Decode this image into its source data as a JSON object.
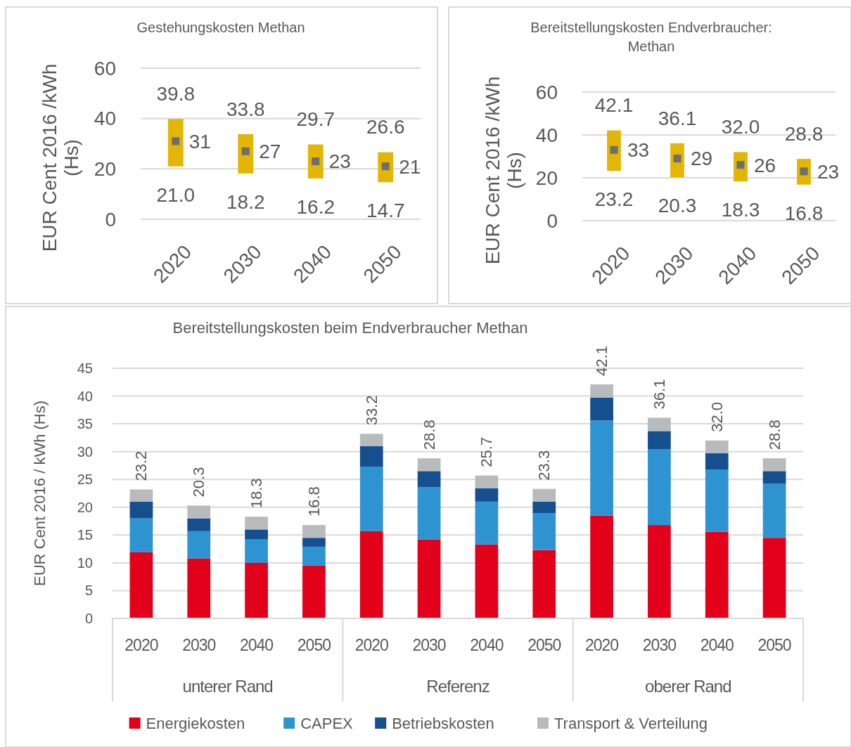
{
  "chart_data": [
    {
      "type": "bar",
      "title": "Gestehungskosten Methan",
      "ylabel": "EUR Cent 2016 /kWh (Hs)",
      "categories": [
        "2020",
        "2030",
        "2040",
        "2050"
      ],
      "series": [
        {
          "color": "#e3b505",
          "base": [
            21.0,
            18.2,
            16.2,
            14.7
          ],
          "values": [
            18.8,
            15.6,
            13.5,
            11.9
          ]
        },
        {
          "type": "scatter",
          "color": "#6d6e71",
          "values": [
            31,
            27,
            23,
            21
          ],
          "value_labels": [
            "31",
            "27",
            "23",
            "21"
          ]
        }
      ],
      "annotations": [
        "39.8",
        "21.0",
        "33.8",
        "18.2",
        "29.7",
        "16.2",
        "26.6",
        "14.7"
      ],
      "ylim": [
        0,
        60
      ],
      "yticks": [
        0,
        20,
        40,
        60
      ],
      "grid": "y",
      "marker": "square"
    },
    {
      "type": "bar",
      "title": "Bereitstellungskosten Endverbraucher: Methan",
      "ylabel": "EUR Cent 2016 /kWh (Hs)",
      "categories": [
        "2020",
        "2030",
        "2040",
        "2050"
      ],
      "series": [
        {
          "color": "#e3b505",
          "base": [
            23.2,
            20.3,
            18.3,
            16.8
          ],
          "values": [
            18.9,
            15.8,
            13.7,
            12.0
          ]
        },
        {
          "type": "scatter",
          "color": "#6d6e71",
          "values": [
            33,
            29,
            26,
            23
          ],
          "value_labels": [
            "33",
            "29",
            "26",
            "23"
          ]
        }
      ],
      "annotations": [
        "42.1",
        "23.2",
        "36.1",
        "20.3",
        "32.0",
        "18.3",
        "28.8",
        "16.8"
      ],
      "ylim": [
        0,
        60
      ],
      "yticks": [
        0,
        20,
        40,
        60
      ],
      "grid": "y",
      "marker": "square"
    },
    {
      "type": "bar",
      "title": "Bereitstellungskosten beim Endverbraucher Methan",
      "ylabel": "EUR Cent 2016 / kWh (Hs)",
      "stacked": true,
      "categories": [
        "2020",
        "2030",
        "2040",
        "2050",
        "2020",
        "2030",
        "2040",
        "2050",
        "2020",
        "2030",
        "2040",
        "2050"
      ],
      "series": [
        {
          "name": "Energiekosten",
          "color": "#e2001a",
          "values": [
            11.9,
            10.8,
            10.0,
            9.5,
            15.7,
            14.2,
            13.3,
            12.3,
            18.5,
            16.8,
            15.6,
            14.5
          ]
        },
        {
          "name": "CAPEX",
          "color": "#2e93d1",
          "values": [
            6.1,
            4.9,
            4.2,
            3.4,
            11.6,
            9.4,
            7.7,
            6.6,
            17.1,
            13.6,
            11.2,
            9.7
          ]
        },
        {
          "name": "Betriebskosten",
          "color": "#154f8e",
          "values": [
            3.0,
            2.3,
            1.8,
            1.6,
            3.7,
            2.9,
            2.4,
            2.1,
            4.1,
            3.3,
            2.9,
            2.3
          ]
        },
        {
          "name": "Transport & Verteilung",
          "color": "#b8bbbe",
          "values": [
            2.2,
            2.3,
            2.3,
            2.3,
            2.2,
            2.3,
            2.3,
            2.3,
            2.4,
            2.4,
            2.3,
            2.3
          ]
        }
      ],
      "totals": [
        "23.2",
        "20.3",
        "18.3",
        "16.8",
        "33.2",
        "28.8",
        "25.7",
        "23.3",
        "42.1",
        "36.1",
        "32.0",
        "28.8"
      ],
      "annotations": [
        "unterer Rand",
        "Referenz",
        "oberer Rand"
      ],
      "ylim": [
        0,
        45
      ],
      "yticks": [
        0,
        5,
        10,
        15,
        20,
        25,
        30,
        35,
        40,
        45
      ],
      "grid": "y",
      "legend": "bottom"
    }
  ]
}
